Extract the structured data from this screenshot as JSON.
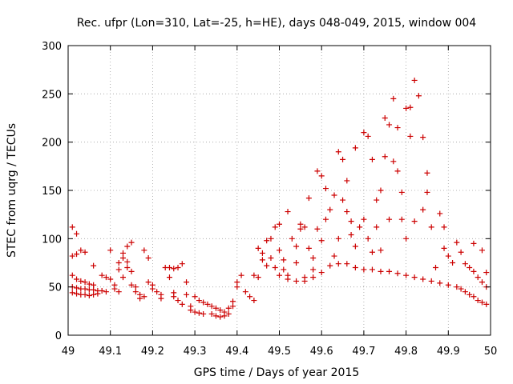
{
  "chart_data": {
    "type": "scatter",
    "title": "Rec. ufpr (Lon=310, Lat=-25, h=HE), days 048-049, 2015, window 004",
    "xlabel": "GPS time / Days of year 2015",
    "ylabel": "STEC from uqrg / TECUs",
    "xlim": [
      49,
      50
    ],
    "ylim": [
      0,
      300
    ],
    "x_ticks": [
      49,
      49.1,
      49.2,
      49.3,
      49.4,
      49.5,
      49.6,
      49.7,
      49.8,
      49.9,
      50
    ],
    "x_tick_labels": [
      "49",
      "49.1",
      "49.2",
      "49.3",
      "49.4",
      "49.5",
      "49.6",
      "49.7",
      "49.8",
      "49.9",
      "50"
    ],
    "y_ticks": [
      0,
      50,
      100,
      150,
      200,
      250,
      300
    ],
    "y_tick_labels": [
      "0",
      "50",
      "100",
      "150",
      "200",
      "250",
      "300"
    ],
    "grid": true,
    "legend": "none",
    "marker": "plus",
    "color": "#cc0000",
    "series": [
      {
        "points": [
          [
            49.01,
            112
          ],
          [
            49.02,
            105
          ],
          [
            49.01,
            82
          ],
          [
            49.02,
            84
          ],
          [
            49.03,
            88
          ],
          [
            49.04,
            86
          ],
          [
            49.01,
            62
          ],
          [
            49.02,
            58
          ],
          [
            49.03,
            56
          ],
          [
            49.04,
            55
          ],
          [
            49.05,
            53
          ],
          [
            49.06,
            52
          ],
          [
            49.01,
            50
          ],
          [
            49.02,
            49
          ],
          [
            49.03,
            48
          ],
          [
            49.04,
            48
          ],
          [
            49.05,
            47
          ],
          [
            49.06,
            47
          ],
          [
            49.07,
            46
          ],
          [
            49.08,
            46
          ],
          [
            49.09,
            45
          ],
          [
            49.01,
            44
          ],
          [
            49.02,
            43
          ],
          [
            49.03,
            42
          ],
          [
            49.04,
            42
          ],
          [
            49.05,
            41
          ],
          [
            49.06,
            42
          ],
          [
            49.07,
            43
          ],
          [
            49.06,
            72
          ],
          [
            49.08,
            62
          ],
          [
            49.09,
            60
          ],
          [
            49.1,
            88
          ],
          [
            49.1,
            58
          ],
          [
            49.11,
            52
          ],
          [
            49.11,
            48
          ],
          [
            49.12,
            45
          ],
          [
            49.12,
            75
          ],
          [
            49.12,
            68
          ],
          [
            49.13,
            85
          ],
          [
            49.13,
            80
          ],
          [
            49.13,
            60
          ],
          [
            49.14,
            92
          ],
          [
            49.14,
            76
          ],
          [
            49.14,
            70
          ],
          [
            49.15,
            96
          ],
          [
            49.15,
            66
          ],
          [
            49.15,
            52
          ],
          [
            49.16,
            50
          ],
          [
            49.16,
            45
          ],
          [
            49.17,
            42
          ],
          [
            49.17,
            38
          ],
          [
            49.18,
            40
          ],
          [
            49.18,
            88
          ],
          [
            49.19,
            80
          ],
          [
            49.19,
            55
          ],
          [
            49.2,
            52
          ],
          [
            49.2,
            48
          ],
          [
            49.21,
            45
          ],
          [
            49.22,
            42
          ],
          [
            49.22,
            38
          ],
          [
            49.23,
            70
          ],
          [
            49.24,
            70
          ],
          [
            49.25,
            69
          ],
          [
            49.26,
            70
          ],
          [
            49.24,
            60
          ],
          [
            49.25,
            44
          ],
          [
            49.25,
            40
          ],
          [
            49.26,
            36
          ],
          [
            49.27,
            32
          ],
          [
            49.27,
            74
          ],
          [
            49.28,
            55
          ],
          [
            49.28,
            42
          ],
          [
            49.29,
            30
          ],
          [
            49.29,
            26
          ],
          [
            49.3,
            24
          ],
          [
            49.31,
            23
          ],
          [
            49.32,
            22
          ],
          [
            49.3,
            40
          ],
          [
            49.31,
            36
          ],
          [
            49.32,
            34
          ],
          [
            49.33,
            32
          ],
          [
            49.34,
            30
          ],
          [
            49.34,
            22
          ],
          [
            49.35,
            20
          ],
          [
            49.36,
            19
          ],
          [
            49.35,
            28
          ],
          [
            49.36,
            26
          ],
          [
            49.37,
            24
          ],
          [
            49.37,
            20
          ],
          [
            49.38,
            22
          ],
          [
            49.38,
            28
          ],
          [
            49.39,
            30
          ],
          [
            49.39,
            35
          ],
          [
            49.4,
            50
          ],
          [
            49.4,
            55
          ],
          [
            49.41,
            62
          ],
          [
            49.42,
            45
          ],
          [
            49.43,
            40
          ],
          [
            49.44,
            36
          ],
          [
            49.44,
            62
          ],
          [
            49.45,
            60
          ],
          [
            49.45,
            90
          ],
          [
            49.46,
            85
          ],
          [
            49.46,
            78
          ],
          [
            49.47,
            72
          ],
          [
            49.47,
            98
          ],
          [
            49.48,
            100
          ],
          [
            49.48,
            80
          ],
          [
            49.49,
            70
          ],
          [
            49.49,
            112
          ],
          [
            49.5,
            115
          ],
          [
            49.5,
            88
          ],
          [
            49.51,
            78
          ],
          [
            49.51,
            68
          ],
          [
            49.52,
            62
          ],
          [
            49.52,
            128
          ],
          [
            49.53,
            100
          ],
          [
            49.54,
            92
          ],
          [
            49.54,
            75
          ],
          [
            49.55,
            115
          ],
          [
            49.55,
            110
          ],
          [
            49.56,
            112
          ],
          [
            49.56,
            60
          ],
          [
            49.57,
            142
          ],
          [
            49.57,
            90
          ],
          [
            49.58,
            80
          ],
          [
            49.58,
            68
          ],
          [
            49.59,
            110
          ],
          [
            49.59,
            170
          ],
          [
            49.6,
            165
          ],
          [
            49.6,
            98
          ],
          [
            49.61,
            152
          ],
          [
            49.61,
            120
          ],
          [
            49.62,
            130
          ],
          [
            49.63,
            145
          ],
          [
            49.63,
            82
          ],
          [
            49.64,
            190
          ],
          [
            49.64,
            100
          ],
          [
            49.65,
            182
          ],
          [
            49.65,
            140
          ],
          [
            49.66,
            128
          ],
          [
            49.66,
            160
          ],
          [
            49.67,
            118
          ],
          [
            49.67,
            104
          ],
          [
            49.68,
            194
          ],
          [
            49.68,
            92
          ],
          [
            49.69,
            112
          ],
          [
            49.7,
            210
          ],
          [
            49.7,
            120
          ],
          [
            49.71,
            206
          ],
          [
            49.71,
            100
          ],
          [
            49.72,
            182
          ],
          [
            49.72,
            86
          ],
          [
            49.73,
            140
          ],
          [
            49.73,
            112
          ],
          [
            49.74,
            150
          ],
          [
            49.74,
            88
          ],
          [
            49.75,
            225
          ],
          [
            49.75,
            185
          ],
          [
            49.76,
            218
          ],
          [
            49.76,
            120
          ],
          [
            49.77,
            245
          ],
          [
            49.77,
            180
          ],
          [
            49.78,
            215
          ],
          [
            49.78,
            170
          ],
          [
            49.79,
            148
          ],
          [
            49.79,
            120
          ],
          [
            49.8,
            235
          ],
          [
            49.8,
            100
          ],
          [
            49.81,
            206
          ],
          [
            49.81,
            236
          ],
          [
            49.82,
            264
          ],
          [
            49.82,
            118
          ],
          [
            49.83,
            248
          ],
          [
            49.84,
            205
          ],
          [
            49.84,
            130
          ],
          [
            49.85,
            168
          ],
          [
            49.85,
            148
          ],
          [
            49.86,
            112
          ],
          [
            49.87,
            70
          ],
          [
            49.88,
            126
          ],
          [
            49.89,
            112
          ],
          [
            49.89,
            90
          ],
          [
            49.9,
            82
          ],
          [
            49.91,
            75
          ],
          [
            49.92,
            96
          ],
          [
            49.93,
            86
          ],
          [
            49.94,
            74
          ],
          [
            49.95,
            70
          ],
          [
            49.96,
            95
          ],
          [
            49.96,
            66
          ],
          [
            49.97,
            60
          ],
          [
            49.98,
            55
          ],
          [
            49.98,
            88
          ],
          [
            49.99,
            65
          ],
          [
            49.99,
            50
          ],
          [
            49.5,
            62
          ],
          [
            49.52,
            58
          ],
          [
            49.54,
            56
          ],
          [
            49.56,
            56
          ],
          [
            49.58,
            60
          ],
          [
            49.6,
            65
          ],
          [
            49.62,
            72
          ],
          [
            49.64,
            74
          ],
          [
            49.66,
            74
          ],
          [
            49.68,
            70
          ],
          [
            49.7,
            68
          ],
          [
            49.72,
            68
          ],
          [
            49.74,
            66
          ],
          [
            49.76,
            66
          ],
          [
            49.78,
            64
          ],
          [
            49.8,
            62
          ],
          [
            49.82,
            60
          ],
          [
            49.84,
            58
          ],
          [
            49.86,
            56
          ],
          [
            49.88,
            54
          ],
          [
            49.9,
            52
          ],
          [
            49.92,
            50
          ],
          [
            49.93,
            48
          ],
          [
            49.94,
            45
          ],
          [
            49.95,
            42
          ],
          [
            49.96,
            40
          ],
          [
            49.97,
            36
          ],
          [
            49.98,
            34
          ],
          [
            49.99,
            32
          ]
        ]
      }
    ]
  }
}
